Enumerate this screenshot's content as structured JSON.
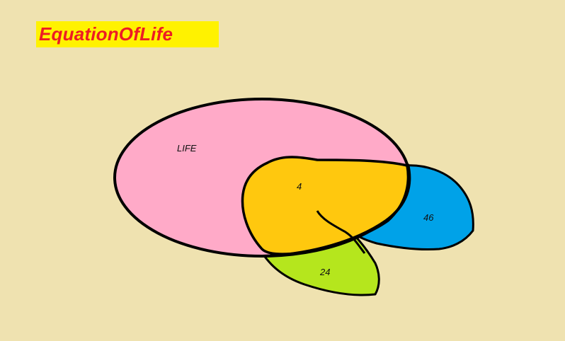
{
  "title": "EquationOfLife",
  "colors": {
    "background": "#EFE2B0",
    "title_bg": "#FFF200",
    "title_text": "#ED1C24",
    "life": "#FFAAC8",
    "overlap": "#FFC80E",
    "blue": "#00A2E8",
    "green": "#B5E61D",
    "outline": "#000000"
  },
  "diagram": {
    "regions": [
      {
        "id": "life",
        "label": "LIFE"
      },
      {
        "id": "overlap",
        "label": "4"
      },
      {
        "id": "blue",
        "label": "46"
      },
      {
        "id": "green",
        "label": "24"
      }
    ]
  }
}
